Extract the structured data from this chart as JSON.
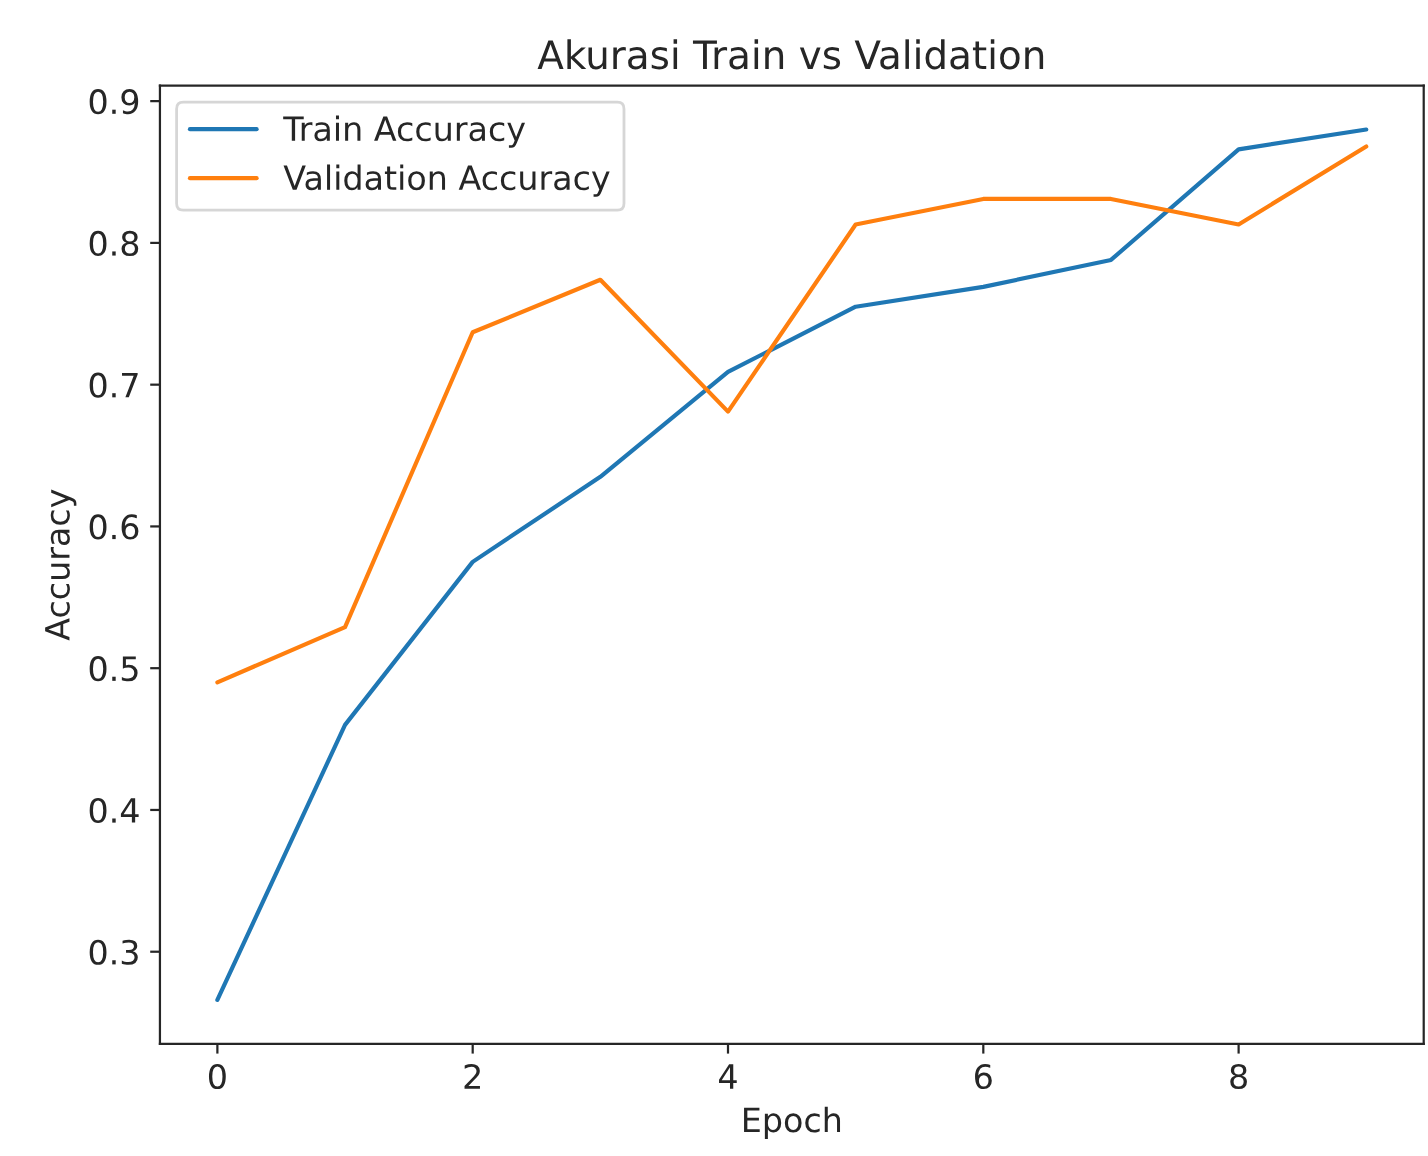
{
  "chart_data": {
    "type": "line",
    "title": "Akurasi Train vs Validation",
    "xlabel": "Epoch",
    "ylabel": "Accuracy",
    "x": [
      0,
      1,
      2,
      3,
      4,
      5,
      6,
      7,
      8,
      9
    ],
    "series": [
      {
        "name": "Train Accuracy",
        "color": "#1f77b4",
        "values": [
          0.266,
          0.46,
          0.575,
          0.635,
          0.709,
          0.755,
          0.769,
          0.788,
          0.866,
          0.88
        ]
      },
      {
        "name": "Validation Accuracy",
        "color": "#ff7f0e",
        "values": [
          0.49,
          0.529,
          0.737,
          0.774,
          0.681,
          0.813,
          0.831,
          0.831,
          0.813,
          0.868
        ]
      }
    ],
    "xlim": [
      -0.45,
      9.45
    ],
    "xticks": [
      0,
      2,
      4,
      6,
      8
    ],
    "ylim": [
      0.235,
      0.911
    ],
    "yticks": [
      0.3,
      0.4,
      0.5,
      0.6,
      0.7,
      0.8,
      0.9
    ],
    "grid": false,
    "legend": "top left",
    "marker": "none",
    "line_style": "solid"
  }
}
